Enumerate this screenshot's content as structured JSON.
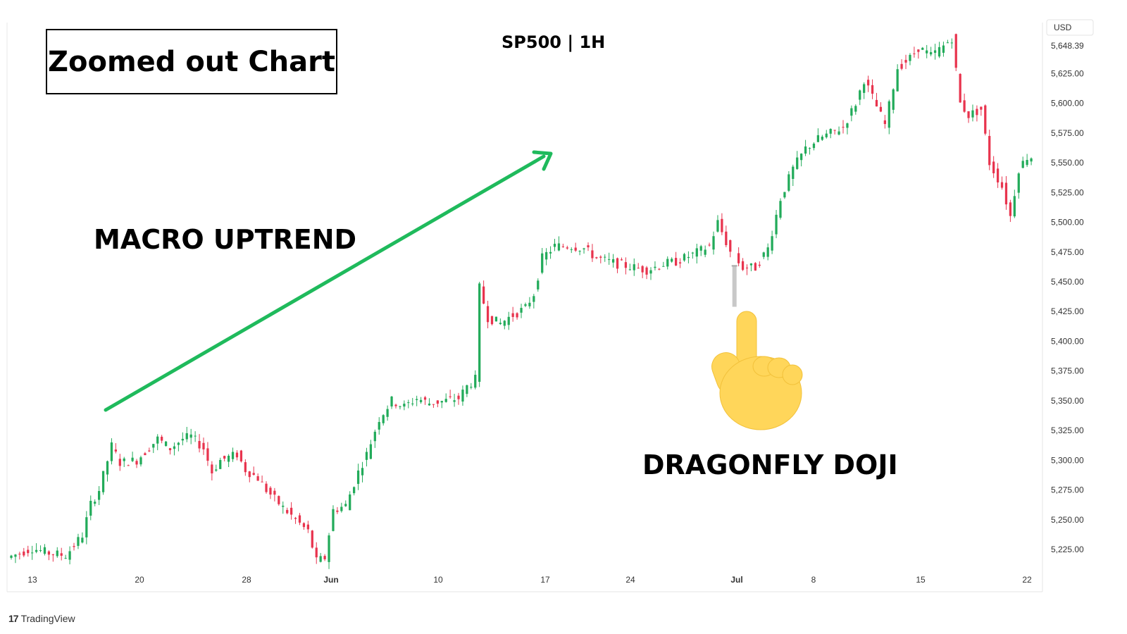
{
  "title_box": "Zoomed out Chart",
  "symbol": "SP500 | 1H",
  "annotations": {
    "trend": "MACRO UPTREND",
    "pattern": "DRAGONFLY DOJI"
  },
  "branding": "TradingView",
  "colors": {
    "up": "#22ab5a",
    "down": "#e8344e",
    "arrow": "#1fba5c",
    "hand": "#ffd65a",
    "doji": "#c8c8c8"
  },
  "icons": [
    "pointing-up-hand-icon",
    "tradingview-logo-icon",
    "trend-arrow-icon"
  ],
  "chart_data": {
    "type": "candlestick",
    "currency_label": "USD",
    "ylim": [
      5200,
      5670
    ],
    "y_ticks": [
      "5,225.00",
      "5,250.00",
      "5,275.00",
      "5,300.00",
      "5,325.00",
      "5,350.00",
      "5,375.00",
      "5,400.00",
      "5,425.00",
      "5,450.00",
      "5,475.00",
      "5,500.00",
      "5,525.00",
      "5,550.00",
      "5,575.00",
      "5,600.00",
      "5,625.00"
    ],
    "last_price_label": "5,648.39",
    "x_ticks": [
      "13",
      "20",
      "28",
      "Jun",
      "10",
      "17",
      "24",
      "Jul",
      "8",
      "15",
      "22"
    ],
    "path": [
      [
        0,
        5218
      ],
      [
        6,
        5226
      ],
      [
        10,
        5222
      ],
      [
        14,
        5220
      ],
      [
        18,
        5237
      ],
      [
        20,
        5263
      ],
      [
        22,
        5275
      ],
      [
        25,
        5312
      ],
      [
        27,
        5298
      ],
      [
        31,
        5300
      ],
      [
        36,
        5318
      ],
      [
        39,
        5310
      ],
      [
        42,
        5318
      ],
      [
        44,
        5320
      ],
      [
        47,
        5310
      ],
      [
        49,
        5290
      ],
      [
        51,
        5300
      ],
      [
        55,
        5305
      ],
      [
        57,
        5292
      ],
      [
        60,
        5285
      ],
      [
        62,
        5275
      ],
      [
        66,
        5260
      ],
      [
        69,
        5250
      ],
      [
        72,
        5240
      ],
      [
        74,
        5215
      ],
      [
        76,
        5218
      ],
      [
        78,
        5258
      ],
      [
        81,
        5262
      ],
      [
        84,
        5290
      ],
      [
        86,
        5305
      ],
      [
        89,
        5335
      ],
      [
        92,
        5350
      ],
      [
        95,
        5345
      ],
      [
        98,
        5352
      ],
      [
        101,
        5348
      ],
      [
        105,
        5350
      ],
      [
        108,
        5352
      ],
      [
        110,
        5362
      ],
      [
        112,
        5368
      ],
      [
        113,
        5445
      ],
      [
        115,
        5420
      ],
      [
        118,
        5415
      ],
      [
        120,
        5420
      ],
      [
        124,
        5428
      ],
      [
        126,
        5440
      ],
      [
        128,
        5470
      ],
      [
        131,
        5480
      ],
      [
        135,
        5480
      ],
      [
        138,
        5478
      ],
      [
        141,
        5470
      ],
      [
        146,
        5465
      ],
      [
        150,
        5462
      ],
      [
        153,
        5460
      ],
      [
        157,
        5465
      ],
      [
        160,
        5467
      ],
      [
        164,
        5473
      ],
      [
        168,
        5480
      ],
      [
        170,
        5500
      ],
      [
        173,
        5475
      ],
      [
        176,
        5462
      ],
      [
        179,
        5462
      ],
      [
        182,
        5478
      ],
      [
        185,
        5520
      ],
      [
        188,
        5545
      ],
      [
        191,
        5562
      ],
      [
        194,
        5570
      ],
      [
        197,
        5575
      ],
      [
        200,
        5580
      ],
      [
        203,
        5600
      ],
      [
        205,
        5620
      ],
      [
        207,
        5605
      ],
      [
        210,
        5582
      ],
      [
        213,
        5630
      ],
      [
        216,
        5638
      ],
      [
        218,
        5647
      ],
      [
        221,
        5640
      ],
      [
        224,
        5648
      ],
      [
        226,
        5655
      ],
      [
        228,
        5600
      ],
      [
        230,
        5590
      ],
      [
        233,
        5595
      ],
      [
        235,
        5550
      ],
      [
        238,
        5530
      ],
      [
        240,
        5505
      ],
      [
        242,
        5545
      ],
      [
        244,
        5555
      ]
    ],
    "doji_point": [
      173,
      5462
    ],
    "note": "Intraday SP500 hourly candles, mid-May to ~22 Jul; gap-up between Jun 10 and Jun 17 session."
  }
}
